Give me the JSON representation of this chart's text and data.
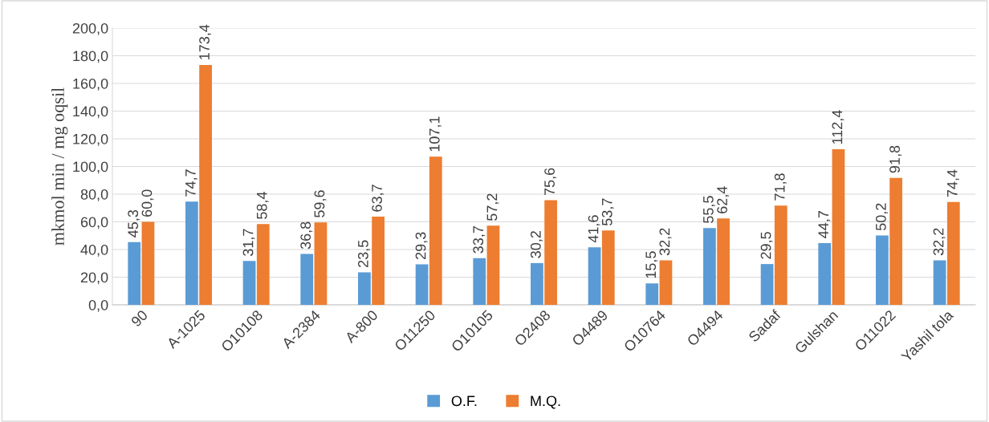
{
  "chart_data": {
    "type": "bar",
    "ylabel": "mkmol min / mg oqsil",
    "categories": [
      "90",
      "A-1025",
      "O10108",
      "A-2384",
      "A-800",
      "O11250",
      "O10105",
      "O2408",
      "O4489",
      "O10764",
      "O4494",
      "Sadaf",
      "Gulshan",
      "O11022",
      "Yashil tola"
    ],
    "series": [
      {
        "name": "O.F.",
        "color": "#5b9bd5",
        "values": [
          45.3,
          74.7,
          31.7,
          36.8,
          23.5,
          29.3,
          33.7,
          30.2,
          41.6,
          15.5,
          55.5,
          29.5,
          44.7,
          50.2,
          32.2
        ],
        "value_labels": [
          "45,3",
          "74,7",
          "31,7",
          "36,8",
          "23,5",
          "29,3",
          "33,7",
          "30,2",
          "41,6",
          "15,5",
          "55,5",
          "29,5",
          "44,7",
          "50,2",
          "32,2"
        ]
      },
      {
        "name": "M.Q.",
        "color": "#ed7d31",
        "values": [
          60.0,
          173.4,
          58.4,
          59.6,
          63.7,
          107.1,
          57.2,
          75.6,
          53.7,
          32.2,
          62.4,
          71.8,
          112.4,
          91.8,
          74.4
        ],
        "value_labels": [
          "60,0",
          "173,4",
          "58,4",
          "59,6",
          "63,7",
          "107,1",
          "57,2",
          "75,6",
          "53,7",
          "32,2",
          "62,4",
          "71,8",
          "112,4",
          "91,8",
          "74,4"
        ]
      }
    ],
    "ylim": [
      0,
      200
    ],
    "yticks": [
      {
        "value": 0,
        "label": "0,0"
      },
      {
        "value": 20,
        "label": "20,0"
      },
      {
        "value": 40,
        "label": "40,0"
      },
      {
        "value": 60,
        "label": "60,0"
      },
      {
        "value": 80,
        "label": "80,0"
      },
      {
        "value": 100,
        "label": "100,0"
      },
      {
        "value": 120,
        "label": "120,0"
      },
      {
        "value": 140,
        "label": "140,0"
      },
      {
        "value": 160,
        "label": "160,0"
      },
      {
        "value": 180,
        "label": "180,0"
      },
      {
        "value": 200,
        "label": "200,0"
      }
    ],
    "grid": "y",
    "legend": "bottom"
  }
}
